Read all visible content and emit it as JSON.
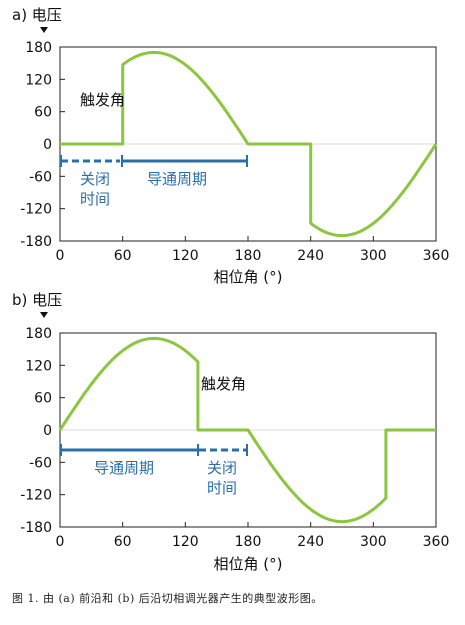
{
  "caption": "图 1. 由 (a) 前沿和 (b) 后沿切相调光器产生的典型波形图。",
  "chart_data": [
    {
      "type": "line",
      "panel_label": "a) 电压",
      "xlabel": "相位角 (°)",
      "xlim": [
        0,
        360
      ],
      "ylim": [
        -180,
        180
      ],
      "x_ticks": [
        "0",
        "60",
        "120",
        "180",
        "240",
        "300",
        "360"
      ],
      "y_ticks": [
        "180",
        "120",
        "60",
        "0",
        "-60",
        "-120",
        "-180"
      ],
      "series": [
        {
          "x": [
            0,
            60,
            60,
            90,
            120,
            150,
            180,
            240,
            240,
            270,
            300,
            330,
            360
          ],
          "y": [
            0,
            0,
            147,
            170,
            147,
            85,
            0,
            0,
            -147,
            -170,
            -147,
            -85,
            0
          ]
        }
      ],
      "annotations": [
        {
          "text": "触发角"
        },
        {
          "text": "关闭\n时间",
          "x_range": [
            0,
            60
          ],
          "style": "dashed"
        },
        {
          "text": "导通周期",
          "x_range": [
            60,
            180
          ],
          "style": "solid"
        }
      ],
      "colors": {
        "waveform": "#8cc63f",
        "interval": "#2b6ea8",
        "zero_line": "#d9d9d9"
      },
      "grid": false
    },
    {
      "type": "line",
      "panel_label": "b) 电压",
      "xlabel": "相位角 (°)",
      "xlim": [
        0,
        360
      ],
      "ylim": [
        -180,
        180
      ],
      "x_ticks": [
        "0",
        "60",
        "120",
        "180",
        "240",
        "300",
        "360"
      ],
      "y_ticks": [
        "180",
        "120",
        "60",
        "0",
        "-60",
        "-120",
        "-180"
      ],
      "series": [
        {
          "x": [
            0,
            30,
            60,
            90,
            120,
            132,
            132,
            180,
            210,
            240,
            270,
            300,
            312,
            312,
            360
          ],
          "y": [
            0,
            85,
            147,
            170,
            147,
            126,
            0,
            0,
            -85,
            -147,
            -170,
            -147,
            -126,
            0,
            0
          ]
        }
      ],
      "annotations": [
        {
          "text": "触发角"
        },
        {
          "text": "导通周期",
          "x_range": [
            0,
            132
          ],
          "style": "solid"
        },
        {
          "text": "关闭\n时间",
          "x_range": [
            132,
            180
          ],
          "style": "dashed"
        }
      ],
      "colors": {
        "waveform": "#8cc63f",
        "interval": "#2b6ea8",
        "zero_line": "#d9d9d9"
      },
      "grid": false
    }
  ]
}
